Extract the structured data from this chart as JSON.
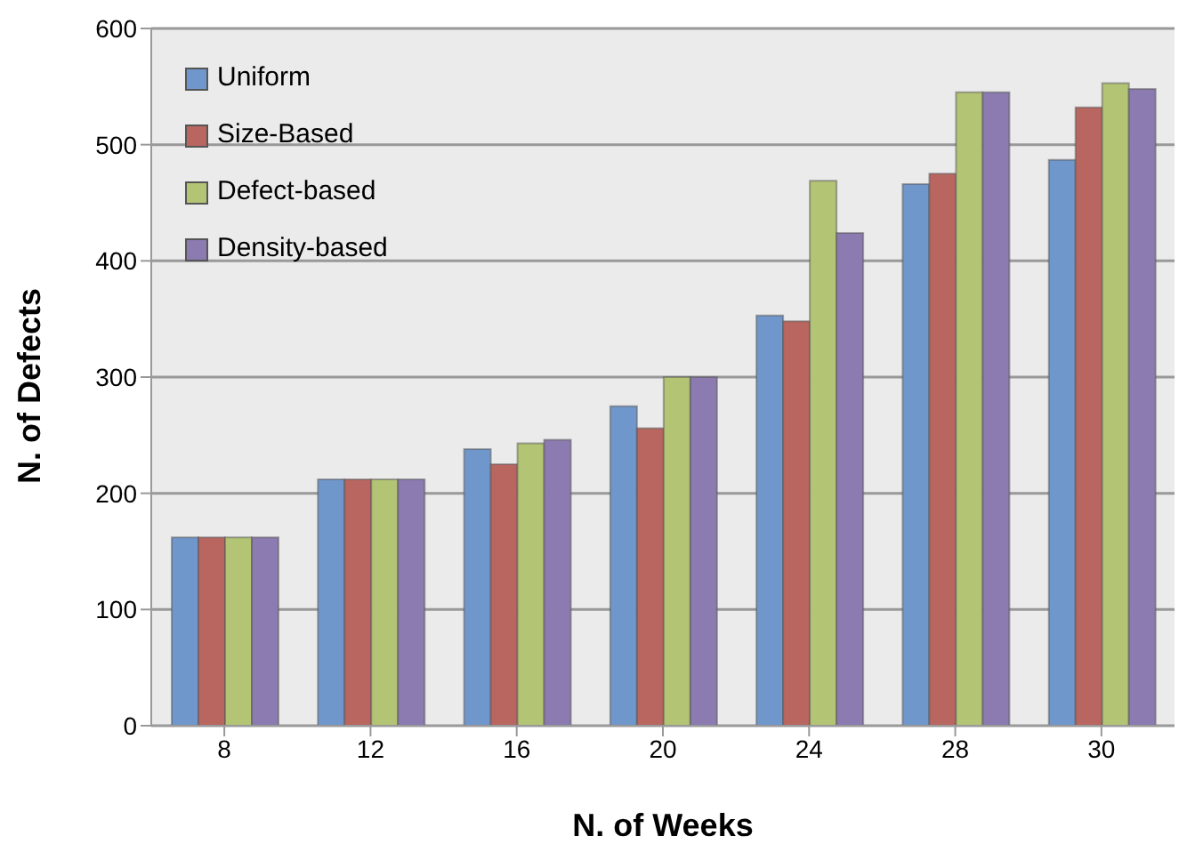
{
  "chart_data": {
    "type": "bar",
    "xlabel": "N. of Weeks",
    "ylabel": "N. of Defects",
    "categories": [
      "8",
      "12",
      "16",
      "20",
      "24",
      "28",
      "30"
    ],
    "series": [
      {
        "name": "Uniform",
        "color": "#7097cc",
        "values": [
          162,
          212,
          238,
          275,
          353,
          466,
          487
        ]
      },
      {
        "name": "Size-Based",
        "color": "#ba6660",
        "values": [
          162,
          212,
          225,
          256,
          348,
          475,
          532
        ]
      },
      {
        "name": "Defect-based",
        "color": "#b3c574",
        "values": [
          162,
          212,
          243,
          300,
          469,
          545,
          553
        ]
      },
      {
        "name": "Density-based",
        "color": "#8b7bb0",
        "values": [
          162,
          212,
          246,
          300,
          424,
          545,
          548
        ]
      }
    ],
    "ylim": [
      0,
      600
    ],
    "yticks": [
      0,
      100,
      200,
      300,
      400,
      500,
      600
    ],
    "grid": "y",
    "legend": "top left"
  }
}
